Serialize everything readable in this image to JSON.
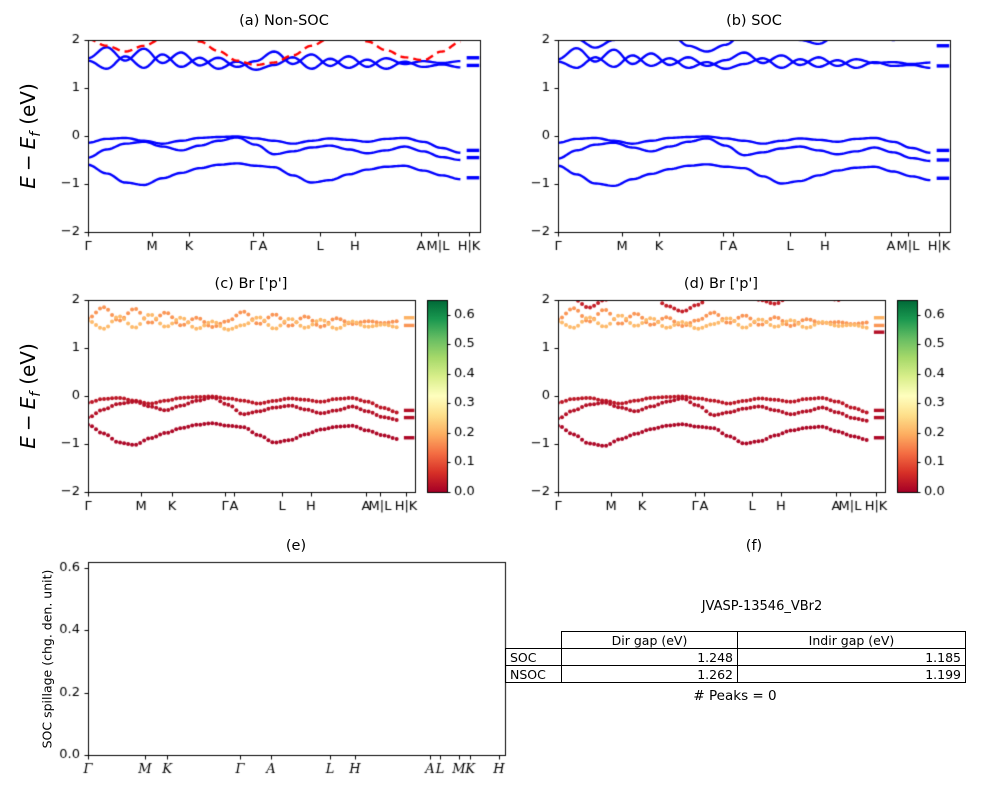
{
  "labels": {
    "energy": {
      "e1": "E",
      "minus": "−",
      "e2": "E",
      "sub": "f",
      "unit": "(eV)"
    },
    "spillage": "SOC spillage (chg. den. unit)"
  },
  "chart_data": [
    {
      "id": "a",
      "type": "line",
      "title": "(a) Non-SOC",
      "ylabel": "E − E_f (eV)",
      "ylim": [
        -2,
        2
      ],
      "ytick_vals": [
        -2,
        -1,
        0,
        1,
        2
      ],
      "ytick_labels": [
        "−2",
        "−1",
        "0",
        "1",
        "2"
      ],
      "xtick_pos": [
        0,
        0.163,
        0.258,
        0.42,
        0.447,
        0.592,
        0.681,
        0.85,
        0.893,
        0.972
      ],
      "xtick_labels": [
        "Γ",
        "M",
        "K",
        "Γ",
        "A",
        "L",
        "H",
        "A",
        "M|L",
        "H|K"
      ],
      "edge_color": "#0000ff",
      "edge_marks": [
        {
          "y": 1.63
        },
        {
          "y": 1.47
        },
        {
          "y": -0.3
        },
        {
          "y": -0.45
        },
        {
          "y": -0.87
        }
      ],
      "bands": [
        {
          "name": "conduction-1",
          "color": "#0000ff",
          "style": "solid",
          "y": [
            1.62,
            1.85,
            1.57,
            1.82,
            1.52,
            1.74,
            1.47,
            1.63,
            1.44,
            1.56,
            1.76,
            1.5,
            1.7,
            1.46,
            1.66,
            1.44,
            1.62,
            1.5,
            1.56,
            1.52,
            1.56
          ]
        },
        {
          "name": "conduction-2",
          "color": "#0000ff",
          "style": "solid",
          "y": [
            1.57,
            1.4,
            1.66,
            1.42,
            1.7,
            1.44,
            1.63,
            1.4,
            1.55,
            1.38,
            1.48,
            1.64,
            1.4,
            1.61,
            1.42,
            1.59,
            1.4,
            1.55,
            1.44,
            1.49,
            1.43
          ]
        },
        {
          "name": "conduction-spin-down",
          "color": "#ff0000",
          "style": "dashed",
          "y": [
            2.02,
            1.88,
            1.76,
            1.88,
            2.03,
            2.12,
            1.97,
            1.77,
            1.57,
            1.48,
            1.53,
            1.68,
            1.88,
            2.04,
            2.12,
            1.97,
            1.79,
            1.64,
            1.58,
            1.76,
            1.96
          ]
        },
        {
          "name": "valence-1",
          "color": "#0000ff",
          "style": "solid",
          "y": [
            -0.14,
            -0.06,
            -0.04,
            -0.1,
            -0.16,
            -0.1,
            -0.04,
            -0.02,
            -0.01,
            -0.05,
            -0.1,
            -0.16,
            -0.1,
            -0.05,
            -0.08,
            -0.12,
            -0.06,
            -0.04,
            -0.12,
            -0.25,
            -0.35
          ]
        },
        {
          "name": "valence-2",
          "color": "#0000ff",
          "style": "solid",
          "y": [
            -0.45,
            -0.28,
            -0.16,
            -0.12,
            -0.22,
            -0.3,
            -0.2,
            -0.1,
            -0.03,
            -0.18,
            -0.38,
            -0.32,
            -0.24,
            -0.2,
            -0.28,
            -0.36,
            -0.3,
            -0.22,
            -0.32,
            -0.44,
            -0.5
          ]
        },
        {
          "name": "valence-3",
          "color": "#0000ff",
          "style": "solid",
          "y": [
            -0.6,
            -0.78,
            -0.97,
            -1.02,
            -0.88,
            -0.77,
            -0.67,
            -0.6,
            -0.57,
            -0.62,
            -0.65,
            -0.82,
            -0.97,
            -0.92,
            -0.8,
            -0.7,
            -0.64,
            -0.62,
            -0.72,
            -0.82,
            -0.9
          ]
        }
      ]
    },
    {
      "id": "b",
      "type": "line",
      "title": "(b) SOC",
      "ylabel": "E − E_f (eV)",
      "ylim": [
        -2,
        2
      ],
      "ytick_vals": [
        -2,
        -1,
        0,
        1,
        2
      ],
      "ytick_labels": [
        "−2",
        "−1",
        "0",
        "1",
        "2"
      ],
      "xtick_pos": [
        0,
        0.163,
        0.258,
        0.42,
        0.447,
        0.592,
        0.681,
        0.85,
        0.893,
        0.972
      ],
      "xtick_labels": [
        "Γ",
        "M",
        "K",
        "Γ",
        "A",
        "L",
        "H",
        "A",
        "M|L",
        "H|K"
      ],
      "edge_color": "#0000ff",
      "edge_marks": [
        {
          "y": 1.88
        },
        {
          "y": 1.46
        },
        {
          "y": -0.3
        },
        {
          "y": -0.5
        },
        {
          "y": -0.88
        }
      ],
      "bands": [
        {
          "name": "conduction-1",
          "color": "#0000ff",
          "style": "solid",
          "y": [
            1.6,
            1.83,
            1.55,
            1.8,
            1.5,
            1.72,
            1.48,
            1.64,
            1.46,
            1.58,
            1.74,
            1.52,
            1.68,
            1.48,
            1.64,
            1.46,
            1.6,
            1.52,
            1.54,
            1.5,
            1.53
          ]
        },
        {
          "name": "conduction-2",
          "color": "#0000ff",
          "style": "solid",
          "y": [
            1.55,
            1.42,
            1.64,
            1.44,
            1.68,
            1.46,
            1.62,
            1.42,
            1.54,
            1.4,
            1.5,
            1.62,
            1.42,
            1.6,
            1.44,
            1.58,
            1.42,
            1.54,
            1.46,
            1.48,
            1.42
          ]
        },
        {
          "name": "conduction-3",
          "color": "#0000ff",
          "style": "solid",
          "y": [
            2.3,
            2.02,
            1.84,
            2.0,
            2.26,
            2.46,
            2.14,
            1.88,
            1.76,
            1.9,
            2.16,
            2.36,
            2.2,
            2.0,
            1.92,
            2.1,
            2.3,
            2.14,
            2.0,
            2.1,
            2.26
          ]
        },
        {
          "name": "valence-1",
          "color": "#0000ff",
          "style": "solid",
          "y": [
            -0.14,
            -0.06,
            -0.04,
            -0.1,
            -0.16,
            -0.1,
            -0.04,
            -0.02,
            -0.01,
            -0.05,
            -0.1,
            -0.16,
            -0.1,
            -0.05,
            -0.08,
            -0.12,
            -0.06,
            -0.04,
            -0.12,
            -0.25,
            -0.35
          ]
        },
        {
          "name": "valence-2",
          "color": "#0000ff",
          "style": "solid",
          "y": [
            -0.47,
            -0.3,
            -0.18,
            -0.14,
            -0.24,
            -0.32,
            -0.22,
            -0.12,
            -0.05,
            -0.2,
            -0.4,
            -0.34,
            -0.26,
            -0.22,
            -0.3,
            -0.38,
            -0.32,
            -0.24,
            -0.34,
            -0.46,
            -0.52
          ]
        },
        {
          "name": "valence-3",
          "color": "#0000ff",
          "style": "solid",
          "y": [
            -0.62,
            -0.8,
            -0.99,
            -1.04,
            -0.9,
            -0.79,
            -0.69,
            -0.62,
            -0.59,
            -0.64,
            -0.67,
            -0.84,
            -0.99,
            -0.94,
            -0.82,
            -0.72,
            -0.66,
            -0.64,
            -0.74,
            -0.84,
            -0.92
          ]
        }
      ]
    },
    {
      "id": "c",
      "type": "scatter",
      "title": "(c) Br ['p']",
      "ylabel": "E − E_f (eV)",
      "ylim": [
        -2,
        2
      ],
      "ytick_vals": [
        -2,
        -1,
        0,
        1,
        2
      ],
      "ytick_labels": [
        "−2",
        "−1",
        "0",
        "1",
        "2"
      ],
      "xtick_pos": [
        0,
        0.163,
        0.258,
        0.42,
        0.447,
        0.592,
        0.681,
        0.85,
        0.893,
        0.972
      ],
      "xtick_labels": [
        "Γ",
        "M",
        "K",
        "Γ",
        "A",
        "L",
        "H",
        "A",
        "M|L",
        "H|K"
      ],
      "colorbar": {
        "vmax": 0.65,
        "tick_vals": [
          0,
          0.1,
          0.2,
          0.3,
          0.4,
          0.5,
          0.6
        ],
        "tick_labels": [
          "0.0",
          "0.1",
          "0.2",
          "0.3",
          "0.4",
          "0.5",
          "0.6"
        ]
      },
      "edge_marks": [
        {
          "y": 1.63,
          "value": 0.2
        },
        {
          "y": 1.47,
          "value": 0.17
        },
        {
          "y": -0.3,
          "value": 0.02
        },
        {
          "y": -0.45,
          "value": 0.02
        },
        {
          "y": -0.87,
          "value": 0.01
        }
      ],
      "bands": [
        {
          "name": "conduction-1",
          "value": 0.17,
          "y": [
            1.62,
            1.85,
            1.57,
            1.82,
            1.52,
            1.74,
            1.47,
            1.63,
            1.44,
            1.56,
            1.76,
            1.5,
            1.7,
            1.46,
            1.66,
            1.44,
            1.62,
            1.5,
            1.56,
            1.52,
            1.56
          ]
        },
        {
          "name": "conduction-2",
          "value": 0.21,
          "y": [
            1.57,
            1.4,
            1.66,
            1.42,
            1.7,
            1.44,
            1.63,
            1.4,
            1.55,
            1.38,
            1.48,
            1.64,
            1.4,
            1.61,
            1.42,
            1.59,
            1.4,
            1.55,
            1.44,
            1.49,
            1.43
          ]
        },
        {
          "name": "valence-1",
          "value": 0.03,
          "y": [
            -0.14,
            -0.06,
            -0.04,
            -0.1,
            -0.16,
            -0.1,
            -0.04,
            -0.02,
            -0.01,
            -0.05,
            -0.1,
            -0.16,
            -0.1,
            -0.05,
            -0.08,
            -0.12,
            -0.06,
            -0.04,
            -0.12,
            -0.25,
            -0.35
          ]
        },
        {
          "name": "valence-2",
          "value": 0.02,
          "y": [
            -0.45,
            -0.28,
            -0.16,
            -0.12,
            -0.22,
            -0.3,
            -0.2,
            -0.1,
            -0.03,
            -0.18,
            -0.38,
            -0.32,
            -0.24,
            -0.2,
            -0.28,
            -0.36,
            -0.3,
            -0.22,
            -0.32,
            -0.44,
            -0.5
          ]
        },
        {
          "name": "valence-3",
          "value": 0.01,
          "y": [
            -0.6,
            -0.78,
            -0.97,
            -1.02,
            -0.88,
            -0.77,
            -0.67,
            -0.6,
            -0.57,
            -0.62,
            -0.65,
            -0.82,
            -0.97,
            -0.92,
            -0.8,
            -0.7,
            -0.64,
            -0.62,
            -0.72,
            -0.82,
            -0.9
          ]
        }
      ]
    },
    {
      "id": "d",
      "type": "scatter",
      "title": "(d) Br ['p']",
      "ylabel": "E − E_f (eV)",
      "ylim": [
        -2,
        2
      ],
      "ytick_vals": [
        -2,
        -1,
        0,
        1,
        2
      ],
      "ytick_labels": [
        "−2",
        "−1",
        "0",
        "1",
        "2"
      ],
      "xtick_pos": [
        0,
        0.163,
        0.258,
        0.42,
        0.447,
        0.592,
        0.681,
        0.85,
        0.893,
        0.972
      ],
      "xtick_labels": [
        "Γ",
        "M",
        "K",
        "Γ",
        "A",
        "L",
        "H",
        "A",
        "M|L",
        "H|K"
      ],
      "colorbar": {
        "vmax": 0.65,
        "tick_vals": [
          0,
          0.1,
          0.2,
          0.3,
          0.4,
          0.5,
          0.6
        ],
        "tick_labels": [
          "0.0",
          "0.1",
          "0.2",
          "0.3",
          "0.4",
          "0.5",
          "0.6"
        ]
      },
      "edge_marks": [
        {
          "y": 1.63,
          "value": 0.2
        },
        {
          "y": 1.47,
          "value": 0.17
        },
        {
          "y": 1.33,
          "value": 0.02
        },
        {
          "y": -0.3,
          "value": 0.02
        },
        {
          "y": -0.45,
          "value": 0.02
        },
        {
          "y": -0.87,
          "value": 0.01
        }
      ],
      "bands": [
        {
          "name": "conduction-1",
          "value": 0.17,
          "y": [
            1.6,
            1.83,
            1.55,
            1.8,
            1.5,
            1.72,
            1.48,
            1.64,
            1.46,
            1.58,
            1.74,
            1.52,
            1.68,
            1.48,
            1.64,
            1.46,
            1.6,
            1.52,
            1.54,
            1.5,
            1.53
          ]
        },
        {
          "name": "conduction-2",
          "value": 0.21,
          "y": [
            1.55,
            1.42,
            1.64,
            1.44,
            1.68,
            1.46,
            1.62,
            1.42,
            1.54,
            1.4,
            1.5,
            1.62,
            1.42,
            1.6,
            1.44,
            1.58,
            1.42,
            1.54,
            1.46,
            1.48,
            1.42
          ]
        },
        {
          "name": "conduction-3",
          "value": 0.04,
          "y": [
            2.3,
            2.02,
            1.84,
            2.0,
            2.26,
            2.46,
            2.14,
            1.88,
            1.76,
            1.9,
            2.16,
            2.36,
            2.2,
            2.0,
            1.92,
            2.1,
            2.3,
            2.14,
            2.0,
            2.1,
            2.26
          ]
        },
        {
          "name": "valence-1",
          "value": 0.03,
          "y": [
            -0.14,
            -0.06,
            -0.04,
            -0.1,
            -0.16,
            -0.1,
            -0.04,
            -0.02,
            -0.01,
            -0.05,
            -0.1,
            -0.16,
            -0.1,
            -0.05,
            -0.08,
            -0.12,
            -0.06,
            -0.04,
            -0.12,
            -0.25,
            -0.35
          ]
        },
        {
          "name": "valence-2",
          "value": 0.02,
          "y": [
            -0.47,
            -0.3,
            -0.18,
            -0.14,
            -0.24,
            -0.32,
            -0.22,
            -0.12,
            -0.05,
            -0.2,
            -0.4,
            -0.34,
            -0.26,
            -0.22,
            -0.3,
            -0.38,
            -0.32,
            -0.24,
            -0.34,
            -0.46,
            -0.52
          ]
        },
        {
          "name": "valence-3",
          "value": 0.01,
          "y": [
            -0.62,
            -0.8,
            -0.99,
            -1.04,
            -0.9,
            -0.79,
            -0.69,
            -0.62,
            -0.59,
            -0.64,
            -0.67,
            -0.84,
            -0.99,
            -0.94,
            -0.82,
            -0.72,
            -0.66,
            -0.64,
            -0.74,
            -0.84,
            -0.92
          ]
        }
      ]
    },
    {
      "id": "e",
      "type": "empty",
      "title": "(e)",
      "ylabel": "SOC spillage (chg. den. unit)",
      "ylim": [
        0,
        0.62
      ],
      "ytick_vals": [
        0,
        0.2,
        0.4,
        0.6
      ],
      "ytick_labels": [
        "0.0",
        "0.2",
        "0.4",
        "0.6"
      ],
      "xtick_pos": [
        0,
        0.137,
        0.19,
        0.365,
        0.44,
        0.58,
        0.64,
        0.82,
        0.845,
        0.89,
        0.915,
        0.985
      ],
      "xtick_labels": [
        "Γ",
        "M",
        "K",
        "Γ",
        "A",
        "L",
        "H",
        "A",
        "L",
        "M",
        "K",
        "H"
      ],
      "tick_style": "italic"
    },
    {
      "id": "f",
      "type": "table",
      "panel_label": "(f)",
      "title": "JVASP-13546_VBr2",
      "col_headers": [
        "Dir gap (eV)",
        "Indir gap (eV)"
      ],
      "rows": [
        {
          "label": "SOC",
          "dir": "1.248",
          "indir": "1.185"
        },
        {
          "label": "NSOC",
          "dir": "1.262",
          "indir": "1.199"
        }
      ],
      "caption": "# Peaks = 0"
    }
  ]
}
